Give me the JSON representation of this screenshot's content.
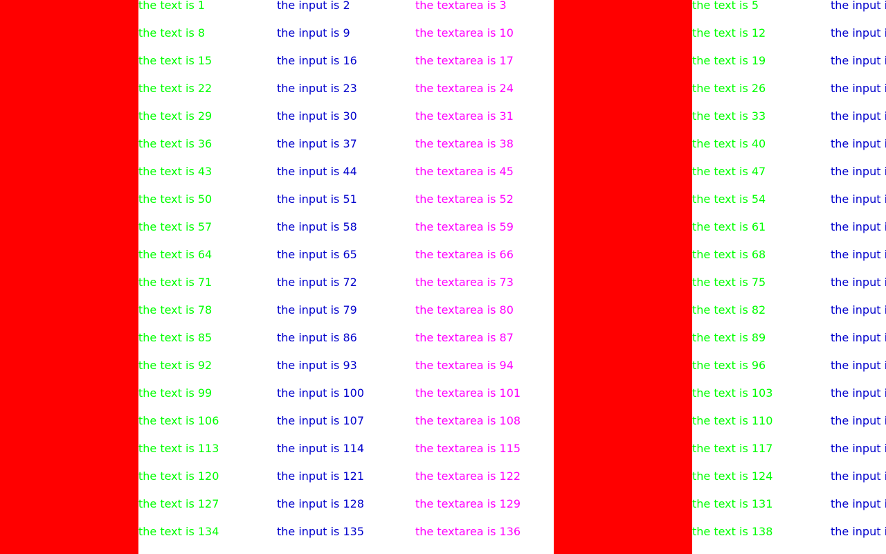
{
  "colors": {
    "block": "#ff0000",
    "text": "#00ff00",
    "input": "#0000cc",
    "textarea": "#ff00ff",
    "background": "#ffffff"
  },
  "rows": [
    [
      "",
      "the text is 1",
      "the input is 2",
      "the textarea is 3",
      "",
      "the text is 5",
      "the input is"
    ],
    [
      "",
      "the text is 8",
      "the input is 9",
      "the textarea is 10",
      "",
      "the text is 12",
      "the input is"
    ],
    [
      "",
      "the text is 15",
      "the input is 16",
      "the textarea is 17",
      "",
      "the text is 19",
      "the input is"
    ],
    [
      "",
      "the text is 22",
      "the input is 23",
      "the textarea is 24",
      "",
      "the text is 26",
      "the input is"
    ],
    [
      "",
      "the text is 29",
      "the input is 30",
      "the textarea is 31",
      "",
      "the text is 33",
      "the input is"
    ],
    [
      "",
      "the text is 36",
      "the input is 37",
      "the textarea is 38",
      "",
      "the text is 40",
      "the input is"
    ],
    [
      "",
      "the text is 43",
      "the input is 44",
      "the textarea is 45",
      "",
      "the text is 47",
      "the input is"
    ],
    [
      "",
      "the text is 50",
      "the input is 51",
      "the textarea is 52",
      "",
      "the text is 54",
      "the input is"
    ],
    [
      "",
      "the text is 57",
      "the input is 58",
      "the textarea is 59",
      "",
      "the text is 61",
      "the input is"
    ],
    [
      "",
      "the text is 64",
      "the input is 65",
      "the textarea is 66",
      "",
      "the text is 68",
      "the input is"
    ],
    [
      "",
      "the text is 71",
      "the input is 72",
      "the textarea is 73",
      "",
      "the text is 75",
      "the input is"
    ],
    [
      "",
      "the text is 78",
      "the input is 79",
      "the textarea is 80",
      "",
      "the text is 82",
      "the input is"
    ],
    [
      "",
      "the text is 85",
      "the input is 86",
      "the textarea is 87",
      "",
      "the text is 89",
      "the input is"
    ],
    [
      "",
      "the text is 92",
      "the input is 93",
      "the textarea is 94",
      "",
      "the text is 96",
      "the input is"
    ],
    [
      "",
      "the text is 99",
      "the input is 100",
      "the textarea is 101",
      "",
      "the text is 103",
      "the input is"
    ],
    [
      "",
      "the text is 106",
      "the input is 107",
      "the textarea is 108",
      "",
      "the text is 110",
      "the input is"
    ],
    [
      "",
      "the text is 113",
      "the input is 114",
      "the textarea is 115",
      "",
      "the text is 117",
      "the input is"
    ],
    [
      "",
      "the text is 120",
      "the input is 121",
      "the textarea is 122",
      "",
      "the text is 124",
      "the input is"
    ],
    [
      "",
      "the text is 127",
      "the input is 128",
      "the textarea is 129",
      "",
      "the text is 131",
      "the input is"
    ],
    [
      "",
      "the text is 134",
      "the input is 135",
      "the textarea is 136",
      "",
      "the text is 138",
      "the input is"
    ]
  ]
}
